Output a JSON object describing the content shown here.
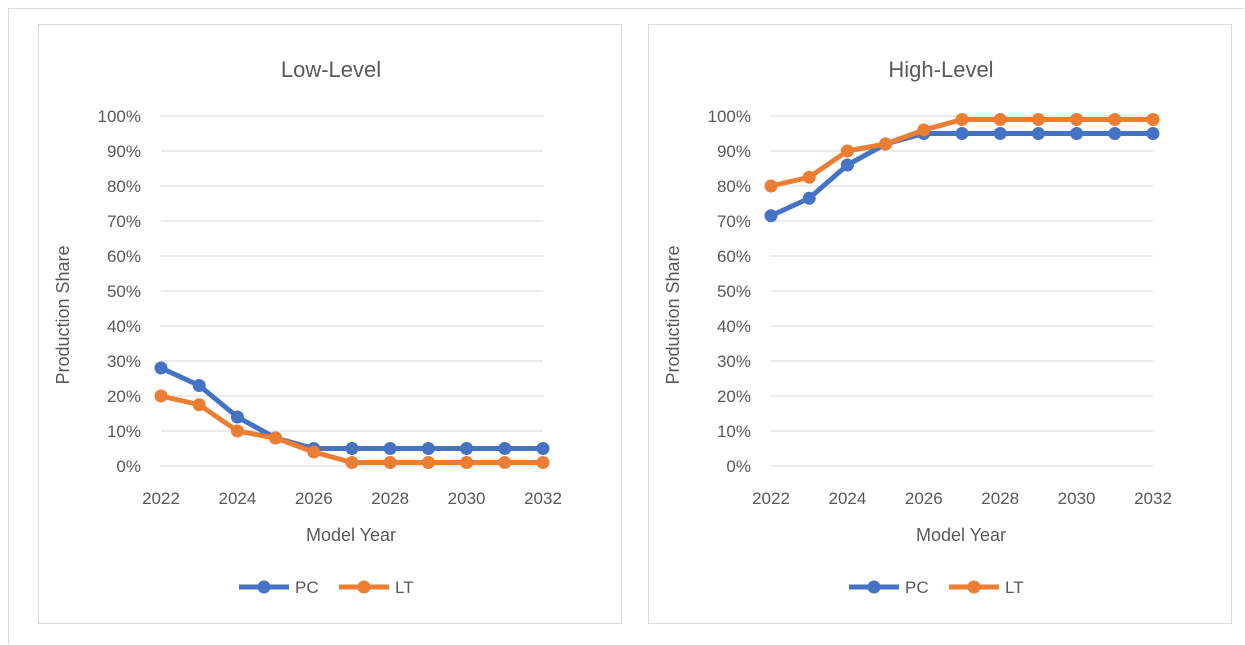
{
  "chart_data": [
    {
      "type": "line",
      "title": "Low-Level",
      "xlabel": "Model Year",
      "ylabel": "Production Share",
      "x": [
        2022,
        2023,
        2024,
        2025,
        2026,
        2027,
        2028,
        2029,
        2030,
        2031,
        2032
      ],
      "x_tick_labels": [
        "2022",
        "2024",
        "2026",
        "2028",
        "2030",
        "2032"
      ],
      "ylim": [
        0,
        100
      ],
      "y_tick_labels": [
        "0%",
        "10%",
        "20%",
        "30%",
        "40%",
        "50%",
        "60%",
        "70%",
        "80%",
        "90%",
        "100%"
      ],
      "grid": "horizontal",
      "legend": "bottom",
      "series": [
        {
          "name": "PC",
          "color": "#4472C4",
          "values": [
            28,
            23,
            14,
            8,
            5,
            5,
            5,
            5,
            5,
            5,
            5
          ]
        },
        {
          "name": "LT",
          "color": "#ED7D31",
          "values": [
            20,
            17.5,
            10,
            8,
            4,
            1,
            1,
            1,
            1,
            1,
            1
          ]
        }
      ]
    },
    {
      "type": "line",
      "title": "High-Level",
      "xlabel": "Model Year",
      "ylabel": "Production Share",
      "x": [
        2022,
        2023,
        2024,
        2025,
        2026,
        2027,
        2028,
        2029,
        2030,
        2031,
        2032
      ],
      "x_tick_labels": [
        "2022",
        "2024",
        "2026",
        "2028",
        "2030",
        "2032"
      ],
      "ylim": [
        0,
        100
      ],
      "y_tick_labels": [
        "0%",
        "10%",
        "20%",
        "30%",
        "40%",
        "50%",
        "60%",
        "70%",
        "80%",
        "90%",
        "100%"
      ],
      "grid": "horizontal",
      "legend": "bottom",
      "series": [
        {
          "name": "PC",
          "color": "#4472C4",
          "values": [
            71.5,
            76.5,
            86,
            92,
            95,
            95,
            95,
            95,
            95,
            95,
            95
          ]
        },
        {
          "name": "LT",
          "color": "#ED7D31",
          "values": [
            80,
            82.5,
            90,
            92,
            96,
            99,
            99,
            99,
            99,
            99,
            99
          ]
        }
      ]
    }
  ]
}
